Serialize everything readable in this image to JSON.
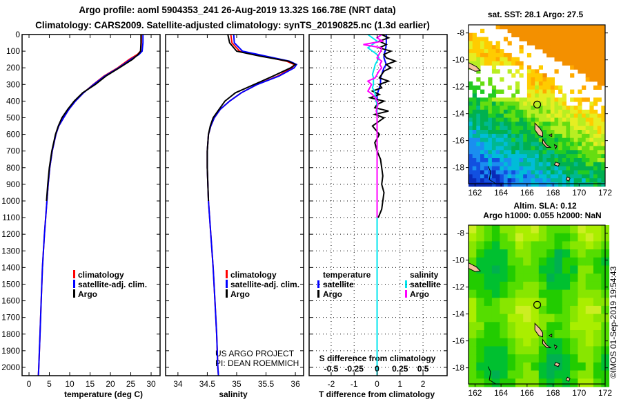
{
  "title_line1": "Argo profile: aoml 5904353_241 26-Aug-2019 13.32S 166.78E (NRT data)",
  "title_line2": "Climatology: CARS2009. Satellite-adjusted climatology: synTS_20190825.nc (1.3d earlier)",
  "watermark": "©IMOS 01-Sep-2019 19:54:43",
  "credit": {
    "line1": "US ARGO PROJECT",
    "line2": "PI: DEAN ROEMMICH"
  },
  "colors": {
    "climatology": "#ff0000",
    "satellite": "#0000ff",
    "argo": "#000000",
    "sal_satellite": "#00e5ee",
    "sal_argo": "#ff00ff"
  },
  "chart_data": [
    {
      "type": "line",
      "id": "temperature",
      "xlabel": "temperature (deg C)",
      "ylabel": "depth",
      "xlim": [
        -1.7,
        32.2
      ],
      "ylim": [
        2050,
        0
      ],
      "xticks": [
        0,
        5,
        10,
        15,
        20,
        25,
        30
      ],
      "yticks": [
        0,
        100,
        200,
        300,
        400,
        500,
        600,
        700,
        800,
        900,
        1000,
        1100,
        1200,
        1300,
        1400,
        1500,
        1600,
        1700,
        1800,
        1900,
        2000
      ],
      "legend": [
        "climatology",
        "satellite-adj. clim.",
        "Argo"
      ],
      "depth": [
        0,
        50,
        100,
        120,
        150,
        200,
        250,
        300,
        350,
        400,
        450,
        500,
        550,
        600,
        700,
        800,
        900,
        1000,
        1200,
        1400,
        1600,
        1800,
        2000,
        2050
      ],
      "series": [
        {
          "name": "climatology",
          "values": [
            27.6,
            27.6,
            27.4,
            26.6,
            24.6,
            21.8,
            18.4,
            15.8,
            13.4,
            11.4,
            9.8,
            8.5,
            7.3,
            6.6,
            5.7,
            5.1,
            4.7,
            4.4,
            3.8,
            3.3,
            3.0,
            2.7,
            2.4,
            2.3
          ]
        },
        {
          "name": "satellite-adj. clim.",
          "values": [
            28.0,
            28.0,
            27.8,
            27.0,
            25.0,
            22.0,
            18.6,
            15.9,
            13.4,
            11.4,
            9.8,
            8.5,
            7.3,
            6.6,
            5.7,
            5.1,
            4.7,
            4.4,
            3.8,
            3.3,
            3.0,
            2.7,
            2.4,
            2.3
          ]
        },
        {
          "name": "Argo",
          "values": [
            27.5,
            27.5,
            27.4,
            26.8,
            25.4,
            22.2,
            18.9,
            16.3,
            13.2,
            11.1,
            9.5,
            8.1,
            7.2,
            6.5,
            5.6,
            5.0,
            4.6,
            4.3,
            null,
            null,
            null,
            null,
            null,
            null
          ]
        }
      ]
    },
    {
      "type": "line",
      "id": "salinity",
      "xlabel": "salinity",
      "xlim": [
        33.79,
        36.14
      ],
      "ylim": [
        2050,
        0
      ],
      "xticks": [
        34,
        34.5,
        35,
        35.5,
        36
      ],
      "legend": [
        "climatology",
        "satellite-adj. clim.",
        "Argo"
      ],
      "depth": [
        0,
        50,
        100,
        130,
        160,
        180,
        200,
        250,
        300,
        350,
        400,
        450,
        500,
        550,
        600,
        700,
        800,
        1000,
        1200,
        1400,
        1600,
        1800,
        2000,
        2050
      ],
      "series": [
        {
          "name": "climatology",
          "values": [
            34.9,
            34.92,
            35.05,
            35.45,
            35.85,
            35.98,
            35.95,
            35.7,
            35.35,
            35.08,
            34.88,
            34.72,
            34.62,
            34.56,
            34.52,
            34.5,
            34.5,
            34.52,
            34.56,
            34.6,
            34.63,
            34.66,
            34.68,
            34.69
          ]
        },
        {
          "name": "satellite-adj. clim.",
          "values": [
            34.95,
            34.96,
            35.1,
            35.5,
            35.9,
            36.02,
            35.98,
            35.72,
            35.35,
            35.08,
            34.88,
            34.72,
            34.62,
            34.56,
            34.52,
            34.5,
            34.5,
            34.52,
            34.56,
            34.6,
            34.63,
            34.66,
            34.68,
            34.69
          ]
        },
        {
          "name": "Argo",
          "values": [
            34.85,
            34.88,
            35.0,
            35.4,
            35.88,
            36.0,
            35.92,
            35.62,
            35.3,
            34.98,
            34.8,
            34.7,
            34.6,
            34.55,
            34.52,
            34.5,
            34.5,
            34.52,
            null,
            null,
            null,
            null,
            null,
            null
          ]
        }
      ]
    },
    {
      "type": "line",
      "id": "differences",
      "xlabel": "T difference from climatology",
      "x2label": "S difference from climatology",
      "xlim": [
        -2.96,
        3.05
      ],
      "ylim": [
        2050,
        0
      ],
      "xticks": [
        -2,
        -1,
        0,
        1,
        2
      ],
      "x2ticks": [
        -0.5,
        -0.25,
        0,
        0.25,
        0.5
      ],
      "x2_scale": 0.25,
      "legend": {
        "temperature_title": "temperature",
        "salinity_title": "salinity",
        "t_satellite": "satellite",
        "t_argo": "Argo",
        "s_satellite": "satellite",
        "s_argo": "Argo"
      },
      "depth": [
        0,
        20,
        40,
        60,
        80,
        100,
        120,
        140,
        160,
        180,
        200,
        220,
        240,
        260,
        280,
        300,
        320,
        340,
        360,
        380,
        400,
        420,
        440,
        460,
        480,
        500,
        550,
        600,
        650,
        700,
        750,
        800,
        850,
        900,
        950,
        1000,
        1050,
        1100,
        1200,
        1400,
        1600,
        1800,
        2000,
        2050
      ],
      "series": [
        {
          "name": "temperature satellite",
          "values": [
            0.4,
            0.4,
            0.4,
            0.4,
            0.38,
            0.35,
            0.3,
            0.3,
            0.35,
            0.4,
            0.3,
            0.25,
            0.2,
            0.15,
            0.15,
            0.15,
            0.1,
            0.05,
            0.0,
            0.0,
            0.0,
            0.0,
            0.0,
            0.0,
            0.0,
            0.0,
            0.0,
            0.0,
            0.0,
            0.0,
            0.0,
            0.0,
            0.0,
            0.0,
            0.0,
            0.0,
            0.0,
            0.0,
            0.0,
            0.0,
            0.0,
            0.0,
            0.0,
            0.0
          ]
        },
        {
          "name": "temperature Argo",
          "values": [
            0.2,
            0.5,
            0.1,
            0.4,
            0.1,
            0.6,
            0.3,
            0.4,
            0.8,
            0.4,
            0.6,
            0.3,
            0.2,
            0.1,
            0.5,
            0.1,
            0.2,
            -0.2,
            0.1,
            -0.3,
            0.3,
            0.0,
            -0.1,
            0.5,
            -0.1,
            0.3,
            -0.2,
            0.1,
            -0.1,
            0.0,
            0.15,
            0.2,
            0.25,
            0.2,
            0.3,
            0.25,
            0.2,
            0.05,
            null,
            null,
            null,
            null,
            null,
            null
          ]
        },
        {
          "name": "salinity satellite",
          "values": [
            -0.1,
            -0.05,
            0.0,
            -0.05,
            -0.1,
            -0.05,
            0.0,
            0.02,
            0.0,
            -0.02,
            -0.03,
            -0.04,
            -0.05,
            -0.04,
            -0.04,
            -0.04,
            -0.05,
            -0.03,
            -0.02,
            -0.02,
            -0.01,
            0.0,
            0.0,
            0.0,
            0.0,
            0.0,
            0.0,
            0.0,
            0.0,
            0.0,
            0.0,
            0.0,
            0.0,
            0.0,
            0.0,
            0.0,
            0.0,
            0.0,
            0.0,
            0.0,
            0.0,
            0.0,
            0.0,
            0.0
          ]
        },
        {
          "name": "salinity Argo",
          "values": [
            0.05,
            0.0,
            0.06,
            -0.15,
            0.05,
            0.04,
            0.02,
            0.0,
            0.05,
            0.03,
            0.05,
            0.02,
            0.0,
            -0.02,
            -0.1,
            -0.06,
            -0.08,
            -0.1,
            -0.05,
            -0.02,
            0.0,
            0.01,
            0.0,
            -0.01,
            0.0,
            0.0,
            0.0,
            0.0,
            0.0,
            0.0,
            0.0,
            0.0,
            0.0,
            0.0,
            0.0,
            0.0,
            0.0,
            0.0,
            null,
            null,
            null,
            null,
            null,
            null
          ]
        }
      ]
    },
    {
      "type": "heatmap",
      "id": "sst_map",
      "title": "sat. SST: 28.1 Argo: 27.5",
      "xlim": [
        161.5,
        172
      ],
      "ylim": [
        -19.2,
        -7.4
      ],
      "xticks": [
        162,
        164,
        166,
        168,
        170,
        172
      ],
      "yticks": [
        -8,
        -10,
        -12,
        -14,
        -16,
        -18
      ],
      "float_position": [
        166.78,
        -13.32
      ]
    },
    {
      "type": "heatmap",
      "id": "sla_map",
      "title": "Altim. SLA: 0.12",
      "subtitle": "Argo h1000: 0.055 h2000: NaN",
      "xlim": [
        161.5,
        172
      ],
      "ylim": [
        -19.2,
        -7.4
      ],
      "xticks": [
        162,
        164,
        166,
        168,
        170,
        172
      ],
      "yticks": [
        -8,
        -10,
        -12,
        -14,
        -16,
        -18
      ],
      "float_position": [
        166.78,
        -13.32
      ]
    }
  ]
}
